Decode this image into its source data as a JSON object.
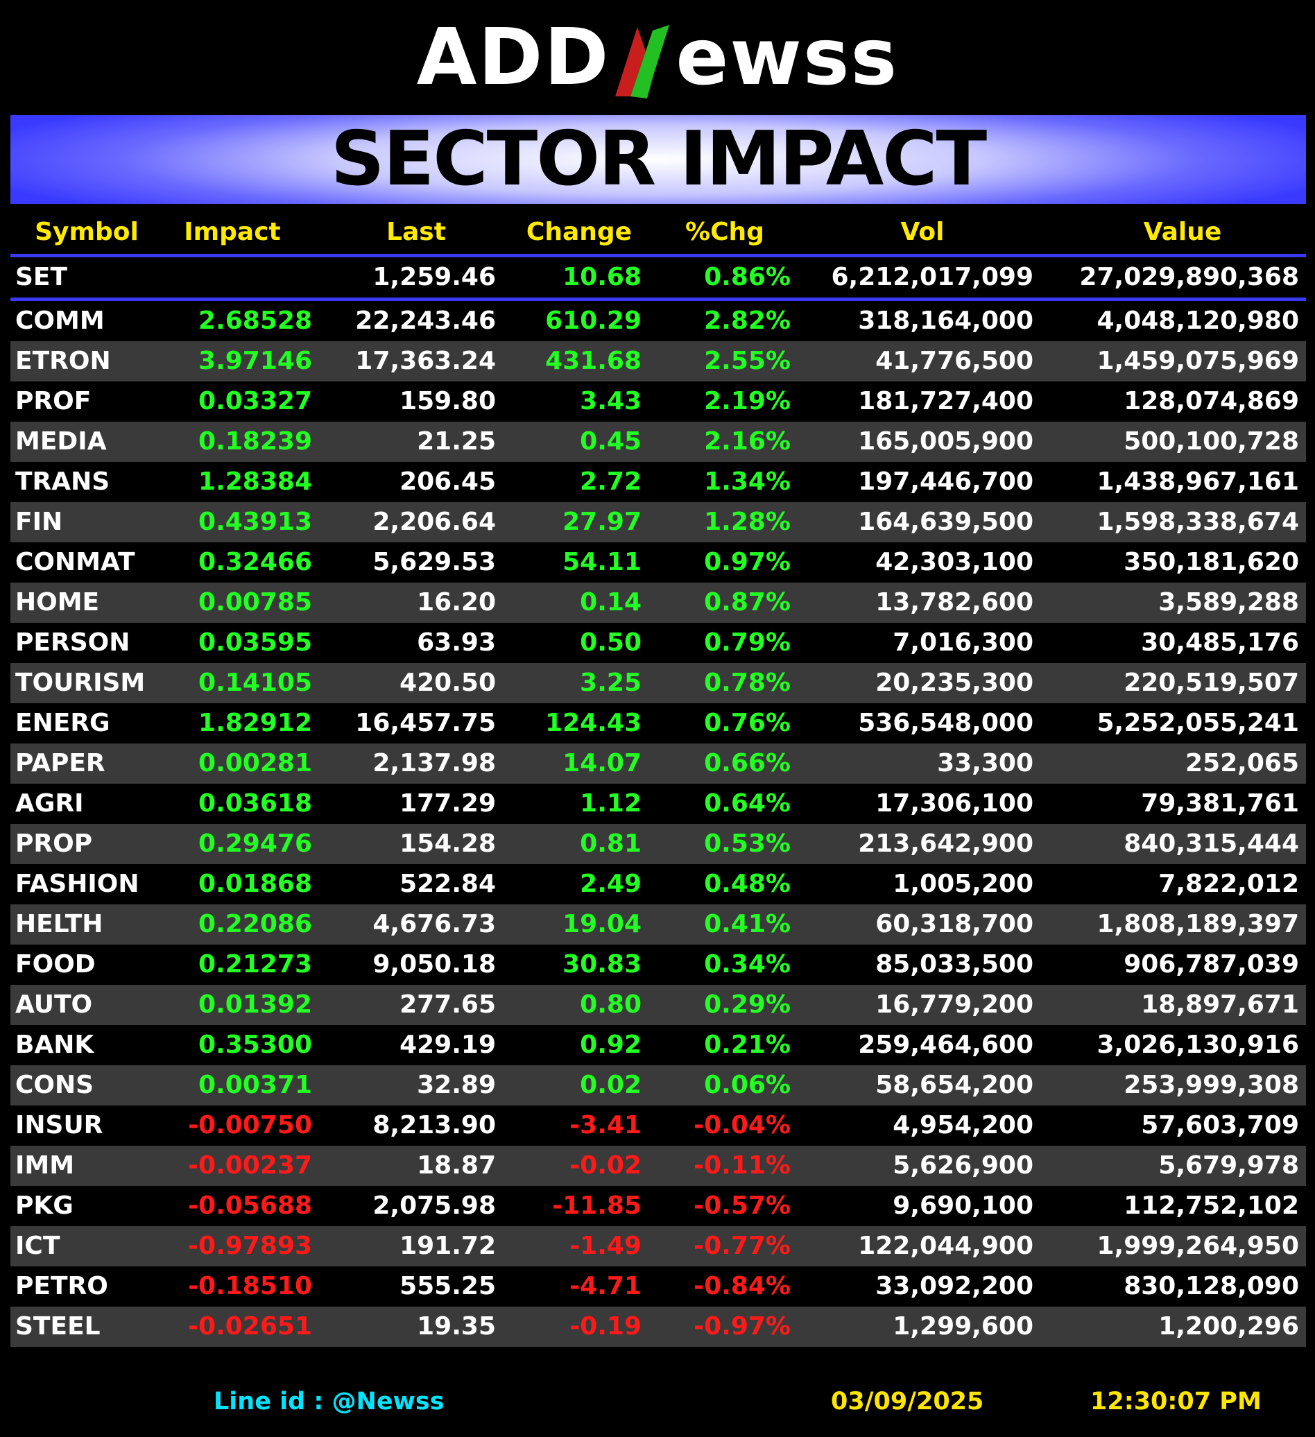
{
  "brand": {
    "part1": "ADD",
    "part2": "ewss",
    "accent_green": "#22c022",
    "accent_red": "#c81e1e"
  },
  "title": "SECTOR IMPACT",
  "columns": [
    "Symbol",
    "Impact",
    "Last",
    "Change",
    "%Chg",
    "Vol",
    "Value"
  ],
  "index_row": {
    "symbol": "SET",
    "impact": "",
    "last": "1,259.46",
    "change": "10.68",
    "pct": "0.86%",
    "vol": "6,212,017,099",
    "value": "27,029,890,368"
  },
  "rows": [
    {
      "symbol": "COMM",
      "impact": "2.68528",
      "last": "22,243.46",
      "change": "610.29",
      "pct": "2.82%",
      "vol": "318,164,000",
      "value": "4,048,120,980",
      "dir": "pos"
    },
    {
      "symbol": "ETRON",
      "impact": "3.97146",
      "last": "17,363.24",
      "change": "431.68",
      "pct": "2.55%",
      "vol": "41,776,500",
      "value": "1,459,075,969",
      "dir": "pos"
    },
    {
      "symbol": "PROF",
      "impact": "0.03327",
      "last": "159.80",
      "change": "3.43",
      "pct": "2.19%",
      "vol": "181,727,400",
      "value": "128,074,869",
      "dir": "pos"
    },
    {
      "symbol": "MEDIA",
      "impact": "0.18239",
      "last": "21.25",
      "change": "0.45",
      "pct": "2.16%",
      "vol": "165,005,900",
      "value": "500,100,728",
      "dir": "pos"
    },
    {
      "symbol": "TRANS",
      "impact": "1.28384",
      "last": "206.45",
      "change": "2.72",
      "pct": "1.34%",
      "vol": "197,446,700",
      "value": "1,438,967,161",
      "dir": "pos"
    },
    {
      "symbol": "FIN",
      "impact": "0.43913",
      "last": "2,206.64",
      "change": "27.97",
      "pct": "1.28%",
      "vol": "164,639,500",
      "value": "1,598,338,674",
      "dir": "pos"
    },
    {
      "symbol": "CONMAT",
      "impact": "0.32466",
      "last": "5,629.53",
      "change": "54.11",
      "pct": "0.97%",
      "vol": "42,303,100",
      "value": "350,181,620",
      "dir": "pos"
    },
    {
      "symbol": "HOME",
      "impact": "0.00785",
      "last": "16.20",
      "change": "0.14",
      "pct": "0.87%",
      "vol": "13,782,600",
      "value": "3,589,288",
      "dir": "pos"
    },
    {
      "symbol": "PERSON",
      "impact": "0.03595",
      "last": "63.93",
      "change": "0.50",
      "pct": "0.79%",
      "vol": "7,016,300",
      "value": "30,485,176",
      "dir": "pos"
    },
    {
      "symbol": "TOURISM",
      "impact": "0.14105",
      "last": "420.50",
      "change": "3.25",
      "pct": "0.78%",
      "vol": "20,235,300",
      "value": "220,519,507",
      "dir": "pos"
    },
    {
      "symbol": "ENERG",
      "impact": "1.82912",
      "last": "16,457.75",
      "change": "124.43",
      "pct": "0.76%",
      "vol": "536,548,000",
      "value": "5,252,055,241",
      "dir": "pos"
    },
    {
      "symbol": "PAPER",
      "impact": "0.00281",
      "last": "2,137.98",
      "change": "14.07",
      "pct": "0.66%",
      "vol": "33,300",
      "value": "252,065",
      "dir": "pos"
    },
    {
      "symbol": "AGRI",
      "impact": "0.03618",
      "last": "177.29",
      "change": "1.12",
      "pct": "0.64%",
      "vol": "17,306,100",
      "value": "79,381,761",
      "dir": "pos"
    },
    {
      "symbol": "PROP",
      "impact": "0.29476",
      "last": "154.28",
      "change": "0.81",
      "pct": "0.53%",
      "vol": "213,642,900",
      "value": "840,315,444",
      "dir": "pos"
    },
    {
      "symbol": "FASHION",
      "impact": "0.01868",
      "last": "522.84",
      "change": "2.49",
      "pct": "0.48%",
      "vol": "1,005,200",
      "value": "7,822,012",
      "dir": "pos"
    },
    {
      "symbol": "HELTH",
      "impact": "0.22086",
      "last": "4,676.73",
      "change": "19.04",
      "pct": "0.41%",
      "vol": "60,318,700",
      "value": "1,808,189,397",
      "dir": "pos"
    },
    {
      "symbol": "FOOD",
      "impact": "0.21273",
      "last": "9,050.18",
      "change": "30.83",
      "pct": "0.34%",
      "vol": "85,033,500",
      "value": "906,787,039",
      "dir": "pos"
    },
    {
      "symbol": "AUTO",
      "impact": "0.01392",
      "last": "277.65",
      "change": "0.80",
      "pct": "0.29%",
      "vol": "16,779,200",
      "value": "18,897,671",
      "dir": "pos"
    },
    {
      "symbol": "BANK",
      "impact": "0.35300",
      "last": "429.19",
      "change": "0.92",
      "pct": "0.21%",
      "vol": "259,464,600",
      "value": "3,026,130,916",
      "dir": "pos"
    },
    {
      "symbol": "CONS",
      "impact": "0.00371",
      "last": "32.89",
      "change": "0.02",
      "pct": "0.06%",
      "vol": "58,654,200",
      "value": "253,999,308",
      "dir": "pos"
    },
    {
      "symbol": "INSUR",
      "impact": "-0.00750",
      "last": "8,213.90",
      "change": "-3.41",
      "pct": "-0.04%",
      "vol": "4,954,200",
      "value": "57,603,709",
      "dir": "neg"
    },
    {
      "symbol": "IMM",
      "impact": "-0.00237",
      "last": "18.87",
      "change": "-0.02",
      "pct": "-0.11%",
      "vol": "5,626,900",
      "value": "5,679,978",
      "dir": "neg"
    },
    {
      "symbol": "PKG",
      "impact": "-0.05688",
      "last": "2,075.98",
      "change": "-11.85",
      "pct": "-0.57%",
      "vol": "9,690,100",
      "value": "112,752,102",
      "dir": "neg"
    },
    {
      "symbol": "ICT",
      "impact": "-0.97893",
      "last": "191.72",
      "change": "-1.49",
      "pct": "-0.77%",
      "vol": "122,044,900",
      "value": "1,999,264,950",
      "dir": "neg"
    },
    {
      "symbol": "PETRO",
      "impact": "-0.18510",
      "last": "555.25",
      "change": "-4.71",
      "pct": "-0.84%",
      "vol": "33,092,200",
      "value": "830,128,090",
      "dir": "neg"
    },
    {
      "symbol": "STEEL",
      "impact": "-0.02651",
      "last": "19.35",
      "change": "-0.19",
      "pct": "-0.97%",
      "vol": "1,299,600",
      "value": "1,200,296",
      "dir": "neg"
    }
  ],
  "footer": {
    "line_id": "Line id  : @Newss",
    "date": "03/09/2025",
    "time": "12:30:07 PM"
  },
  "colors": {
    "positive": "#22ff22",
    "negative": "#ff1a1a",
    "header": "#ffea00",
    "banner_blue": "#3a3aff",
    "alt_row": "#3a3a3a"
  }
}
